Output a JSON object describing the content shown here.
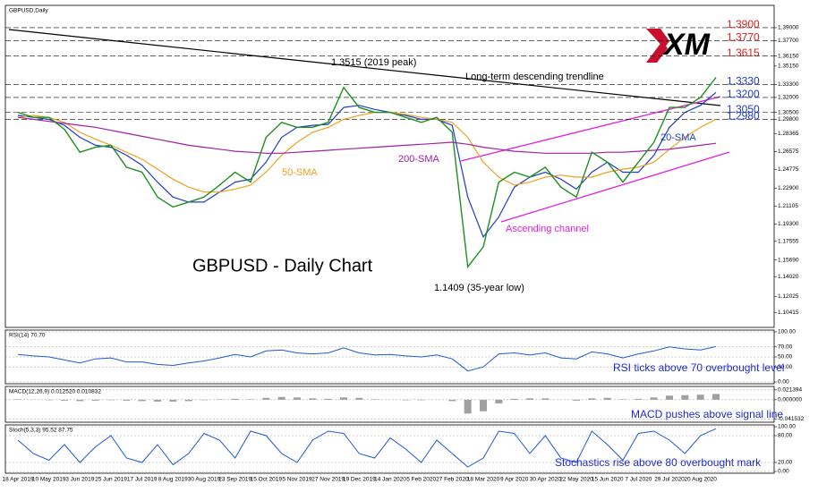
{
  "chart_data": [
    {
      "type": "line",
      "header": "GBPUSD,Daily",
      "title": "GBPUSD - Daily Chart",
      "categories": [
        "18 Apr 2019",
        null,
        "10 May 2019",
        null,
        "3 Jun 2019",
        null,
        "25 Jun 2019",
        null,
        "17 Jul 2019",
        null,
        "8 Aug 2019",
        null,
        "30 Aug 2019",
        null,
        "23 Sep 2019",
        null,
        "15 Oct 2019",
        null,
        "5 Nov 2019",
        null,
        "27 Nov 2019",
        null,
        "19 Dec 2019",
        null,
        "14 Jan 2020",
        null,
        "5 Feb 2020",
        null,
        "27 Feb 2020",
        null,
        "18 Mar 2020",
        null,
        "9 Apr 2020",
        null,
        "30 Apr 2020",
        null,
        "22 May 2020",
        null,
        "15 Jun 2020",
        null,
        "7 Jul 2020",
        null,
        "29 Jul 2020",
        null,
        "20 Aug 2020",
        null
      ],
      "values": [
        1.305,
        1.3,
        1.3,
        1.288,
        1.265,
        1.27,
        1.272,
        1.25,
        1.245,
        1.22,
        1.21,
        1.215,
        1.22,
        1.232,
        1.245,
        1.235,
        1.28,
        1.295,
        1.29,
        1.29,
        1.295,
        1.33,
        1.31,
        1.305,
        1.305,
        1.3,
        1.295,
        1.3,
        1.285,
        1.15,
        1.17,
        1.235,
        1.245,
        1.24,
        1.25,
        1.23,
        1.22,
        1.265,
        1.255,
        1.235,
        1.255,
        1.275,
        1.31,
        1.31,
        1.32,
        1.34
      ],
      "color": "#1f8f1f",
      "series": [
        {
          "name": "20-SMA",
          "color": "#1e3cc8",
          "values": [
            1.302,
            1.3,
            1.298,
            1.292,
            1.28,
            1.272,
            1.27,
            1.262,
            1.252,
            1.235,
            1.22,
            1.215,
            1.215,
            1.225,
            1.235,
            1.238,
            1.255,
            1.28,
            1.29,
            1.292,
            1.293,
            1.31,
            1.312,
            1.308,
            1.305,
            1.302,
            1.298,
            1.298,
            1.292,
            1.22,
            1.18,
            1.2,
            1.23,
            1.24,
            1.245,
            1.238,
            1.228,
            1.245,
            1.255,
            1.245,
            1.245,
            1.262,
            1.29,
            1.305,
            1.312,
            1.325
          ]
        },
        {
          "name": "50-SMA",
          "color": "#f0a020",
          "values": [
            1.3,
            1.302,
            1.3,
            1.295,
            1.285,
            1.278,
            1.272,
            1.265,
            1.258,
            1.248,
            1.238,
            1.23,
            1.225,
            1.225,
            1.228,
            1.232,
            1.245,
            1.262,
            1.275,
            1.285,
            1.29,
            1.298,
            1.302,
            1.305,
            1.305,
            1.303,
            1.3,
            1.298,
            1.295,
            1.28,
            1.255,
            1.24,
            1.232,
            1.235,
            1.24,
            1.242,
            1.24,
            1.24,
            1.245,
            1.248,
            1.25,
            1.255,
            1.268,
            1.28,
            1.29,
            1.298
          ]
        },
        {
          "name": "200-SMA",
          "color": "#a020a0",
          "values": [
            1.3,
            1.298,
            1.296,
            1.294,
            1.292,
            1.29,
            1.287,
            1.284,
            1.281,
            1.278,
            1.275,
            1.272,
            1.27,
            1.268,
            1.266,
            1.265,
            1.264,
            1.264,
            1.265,
            1.266,
            1.267,
            1.268,
            1.269,
            1.27,
            1.271,
            1.272,
            1.273,
            1.274,
            1.275,
            1.273,
            1.27,
            1.268,
            1.266,
            1.265,
            1.264,
            1.264,
            1.264,
            1.264,
            1.265,
            1.265,
            1.266,
            1.267,
            1.268,
            1.27,
            1.272,
            1.274
          ]
        }
      ],
      "ylim": [
        1.091,
        1.4106
      ],
      "yticks": [
        {
          "value": 1.39,
          "label": "1.39000"
        },
        {
          "value": 1.377,
          "label": "1.37700"
        },
        {
          "value": 1.3615,
          "label": "1.36150"
        },
        {
          "value": 1.3515,
          "label": "1.35150"
        },
        {
          "value": 1.333,
          "label": "1.33300"
        },
        {
          "value": 1.32,
          "label": "1.32000"
        },
        {
          "value": 1.305,
          "label": "1.30500"
        },
        {
          "value": 1.298,
          "label": "1.29800"
        },
        1.28365,
        1.26575,
        1.24775,
        {
          "value": 1.229,
          "label": "1.22900"
        },
        1.21105,
        {
          "value": 1.193,
          "label": "1.19300"
        },
        1.17555,
        {
          "value": 1.1569,
          "label": "1.15690"
        },
        {
          "value": 1.1402,
          "label": "1.14020"
        },
        1.12025,
        1.10415
      ],
      "levels": [
        {
          "value": 1.39,
          "label": "1.3900",
          "color": "#e0201b"
        },
        {
          "value": 1.377,
          "label": "1.3770",
          "color": "#e0201b"
        },
        {
          "value": 1.3615,
          "label": "1.3615",
          "color": "#e0201b"
        },
        {
          "value": 1.333,
          "label": "1.3330",
          "color": "#1e3cc8"
        },
        {
          "value": 1.32,
          "label": "1.3200",
          "color": "#1e3cc8"
        },
        {
          "value": 1.305,
          "label": "1.3050",
          "color": "#1e3cc8"
        },
        {
          "value": 1.298,
          "label": "1.2980",
          "color": "#1e3cc8"
        }
      ],
      "annotations": [
        "Long-term descending trendline",
        "1.3515 (2019 peak)",
        "1.1409 (35-year low)",
        "Ascending channel"
      ],
      "logo": "XM"
    },
    {
      "type": "line",
      "header": "RSI(14) 70.70",
      "color": "#1e5ad2",
      "values": [
        55,
        52,
        50,
        44,
        38,
        46,
        48,
        40,
        40,
        35,
        33,
        38,
        42,
        48,
        55,
        50,
        62,
        64,
        58,
        56,
        58,
        68,
        58,
        54,
        55,
        52,
        50,
        54,
        46,
        22,
        30,
        56,
        58,
        54,
        58,
        48,
        46,
        60,
        56,
        48,
        56,
        62,
        70,
        66,
        64,
        70.7
      ],
      "ylim": [
        0,
        100
      ],
      "yticks": [
        {
          "value": 100,
          "label": "100.00"
        },
        {
          "value": 70,
          "label": "70.00"
        },
        {
          "value": 50,
          "label": "50.00"
        },
        {
          "value": 30,
          "label": "30.00"
        },
        {
          "value": 0,
          "label": "0.00"
        }
      ],
      "annotation": "RSI ticks above 70 overbought level"
    },
    {
      "type": "bar",
      "header": "MACD(12,26,9) 0.012520 0.010832",
      "color": "#a0a0a0",
      "values": [
        0.001,
        0.0005,
        -0.001,
        -0.002,
        -0.003,
        -0.002,
        -0.001,
        -0.002,
        -0.003,
        -0.004,
        -0.004,
        -0.003,
        -0.001,
        0.001,
        0.002,
        0.001,
        0.004,
        0.006,
        0.005,
        0.003,
        0.002,
        0.005,
        0.004,
        0.001,
        0,
        -0.001,
        -0.001,
        0,
        -0.003,
        -0.03,
        -0.025,
        -0.008,
        0.002,
        0.003,
        0.003,
        0,
        -0.002,
        0.003,
        0.004,
        0.001,
        0.002,
        0.005,
        0.009,
        0.01,
        0.011,
        0.0125
      ],
      "ylim": [
        -0.045,
        0.025
      ],
      "yticks": [
        {
          "value": 0.021394,
          "label": "0.021394"
        },
        {
          "value": 0,
          "label": "0.000000"
        },
        {
          "value": -0.041532,
          "label": "-0.041532"
        }
      ],
      "annotation": "MACD pushes above signal line"
    },
    {
      "type": "line",
      "header": "Stoch(5,3,3) 95.52 87.75",
      "color": "#1e5ad2",
      "values": [
        70,
        40,
        25,
        60,
        20,
        55,
        80,
        30,
        20,
        60,
        15,
        40,
        85,
        70,
        30,
        90,
        80,
        40,
        20,
        70,
        90,
        85,
        40,
        30,
        75,
        50,
        20,
        70,
        40,
        10,
        30,
        90,
        85,
        40,
        80,
        30,
        20,
        90,
        60,
        25,
        85,
        90,
        70,
        40,
        80,
        95.52
      ],
      "ylim": [
        0,
        100
      ],
      "yticks": [
        {
          "value": 100,
          "label": "100.00"
        },
        {
          "value": 80,
          "label": "80.00"
        },
        {
          "value": 20,
          "label": "20.00"
        },
        {
          "value": 0,
          "label": "0.00"
        }
      ],
      "annotation": "Stochastics rise above 80 overbought mark"
    }
  ]
}
